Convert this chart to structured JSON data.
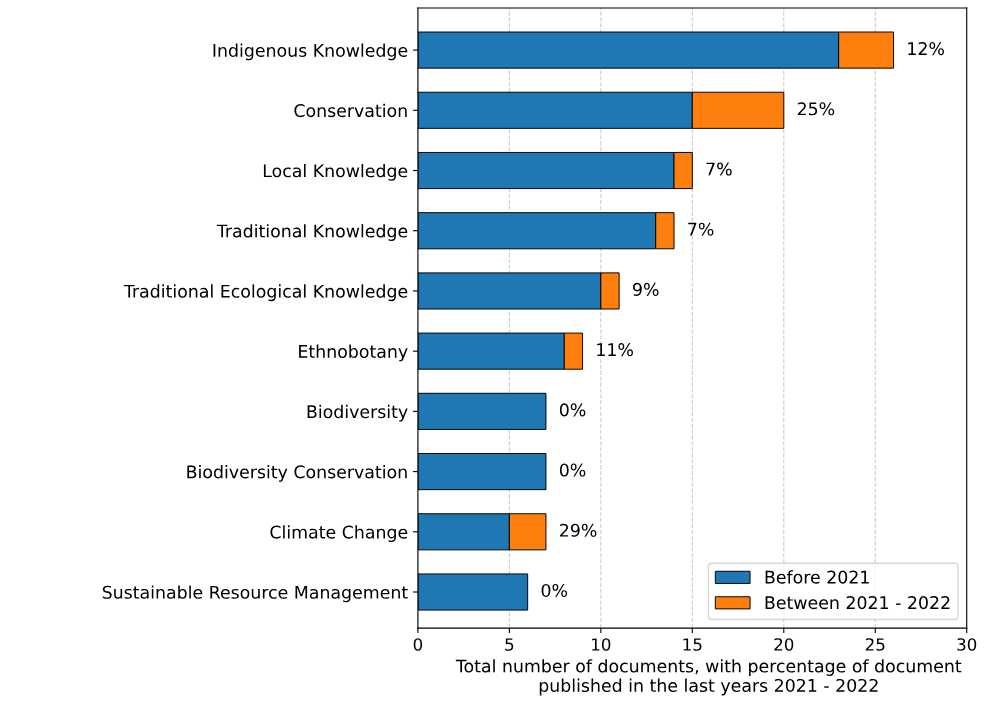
{
  "chart_data": {
    "type": "bar",
    "orientation": "horizontal",
    "stacked": true,
    "categories": [
      "Indigenous Knowledge",
      "Conservation",
      "Local Knowledge",
      "Traditional Knowledge",
      "Traditional Ecological Knowledge",
      "Ethnobotany",
      "Biodiversity",
      "Biodiversity Conservation",
      "Climate Change",
      "Sustainable Resource Management"
    ],
    "series": [
      {
        "name": "Before 2021",
        "color": "#1f77b4",
        "values": [
          23,
          15,
          14,
          13,
          10,
          8,
          7,
          7,
          5,
          6
        ]
      },
      {
        "name": "Between 2021 - 2022",
        "color": "#ff7f0e",
        "values": [
          3,
          5,
          1,
          1,
          1,
          1,
          0,
          0,
          2,
          0
        ]
      }
    ],
    "annotations": [
      {
        "text": "12%",
        "x": 26,
        "y": "Indigenous Knowledge"
      },
      {
        "text": "25%",
        "x": 20,
        "y": "Conservation"
      },
      {
        "text": "7%",
        "x": 15,
        "y": "Local Knowledge"
      },
      {
        "text": "7%",
        "x": 14,
        "y": "Traditional Knowledge"
      },
      {
        "text": "9%",
        "x": 11,
        "y": "Traditional Ecological Knowledge"
      },
      {
        "text": "11%",
        "x": 9,
        "y": "Ethnobotany"
      },
      {
        "text": "0%",
        "x": 7,
        "y": "Biodiversity"
      },
      {
        "text": "0%",
        "x": 7,
        "y": "Biodiversity Conservation"
      },
      {
        "text": "29%",
        "x": 7,
        "y": "Climate Change"
      },
      {
        "text": "0%",
        "x": 6,
        "y": "Sustainable Resource Management"
      }
    ],
    "xlabel": "Total number of documents, with percentage of document\npublished in the last years 2021 - 2022",
    "xlim": [
      0,
      30
    ],
    "xticks": [
      0,
      5,
      10,
      15,
      20,
      25,
      30
    ],
    "grid": "x",
    "legend": "bottom right"
  }
}
